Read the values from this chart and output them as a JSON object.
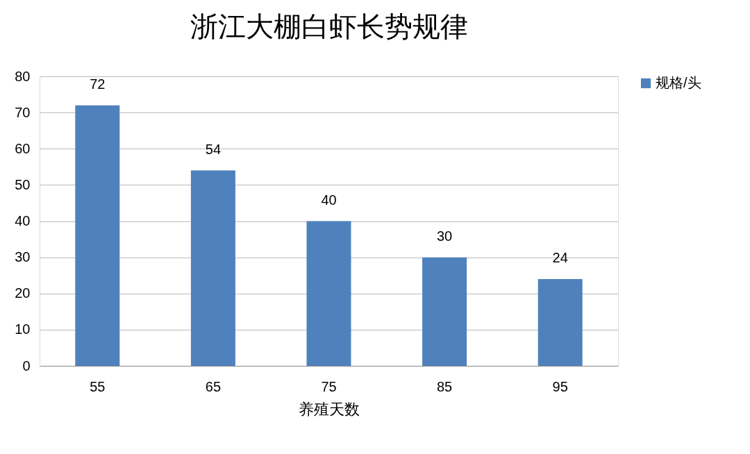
{
  "chart_data": {
    "type": "bar",
    "title": "浙江大棚白虾长势规律",
    "xlabel": "养殖天数",
    "categories": [
      "55",
      "65",
      "75",
      "85",
      "95"
    ],
    "series": [
      {
        "name": "规格/头",
        "color": "#4f81bd",
        "values": [
          72,
          54,
          40,
          30,
          24
        ]
      }
    ],
    "ylim": [
      0,
      80
    ],
    "yticks": [
      0,
      10,
      20,
      30,
      40,
      50,
      60,
      70,
      80
    ],
    "grid": "y",
    "legend": "right",
    "data_labels": true
  }
}
